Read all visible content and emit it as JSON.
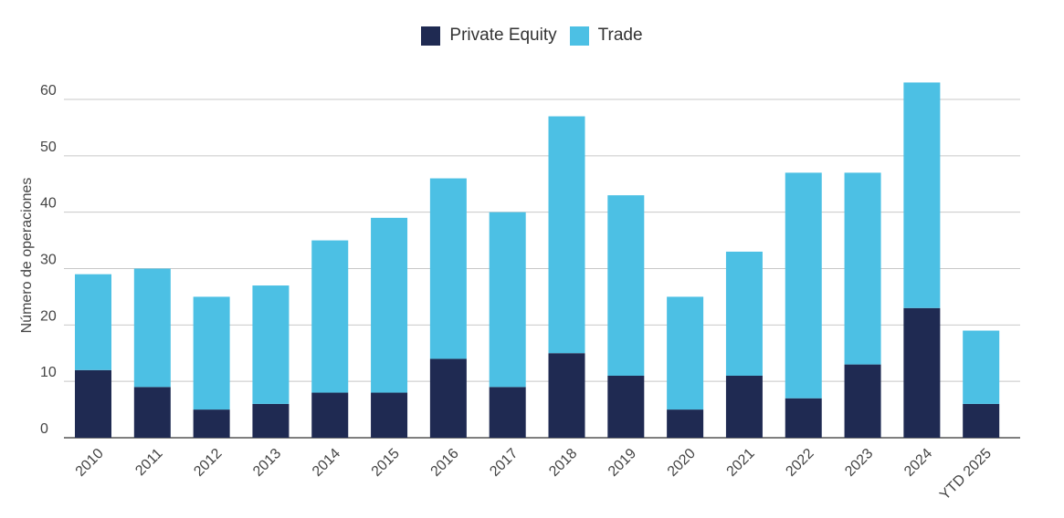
{
  "colors": {
    "private_equity": "#1f2a52",
    "trade": "#4cc0e4",
    "grid": "#c8c8c8",
    "axis_text": "#444444"
  },
  "legend": {
    "series_1": "Private Equity",
    "series_2": "Trade"
  },
  "chart_data": {
    "type": "bar",
    "stacked": true,
    "categories": [
      "2010",
      "2011",
      "2012",
      "2013",
      "2014",
      "2015",
      "2016",
      "2017",
      "2018",
      "2019",
      "2020",
      "2021",
      "2022",
      "2023",
      "2024",
      "YTD 2025"
    ],
    "series": [
      {
        "name": "Private Equity",
        "values": [
          12,
          9,
          5,
          6,
          8,
          8,
          14,
          9,
          15,
          11,
          5,
          11,
          7,
          13,
          23,
          6
        ]
      },
      {
        "name": "Trade",
        "values": [
          17,
          21,
          20,
          21,
          27,
          31,
          32,
          31,
          42,
          32,
          20,
          22,
          40,
          34,
          40,
          13
        ]
      }
    ],
    "ylabel": "Número de operaciones",
    "xlabel": "",
    "ylim": [
      0,
      60
    ],
    "yticks": [
      "0",
      "10",
      "20",
      "30",
      "40",
      "50",
      "60"
    ],
    "grid": true,
    "legend_position": "top-center"
  }
}
